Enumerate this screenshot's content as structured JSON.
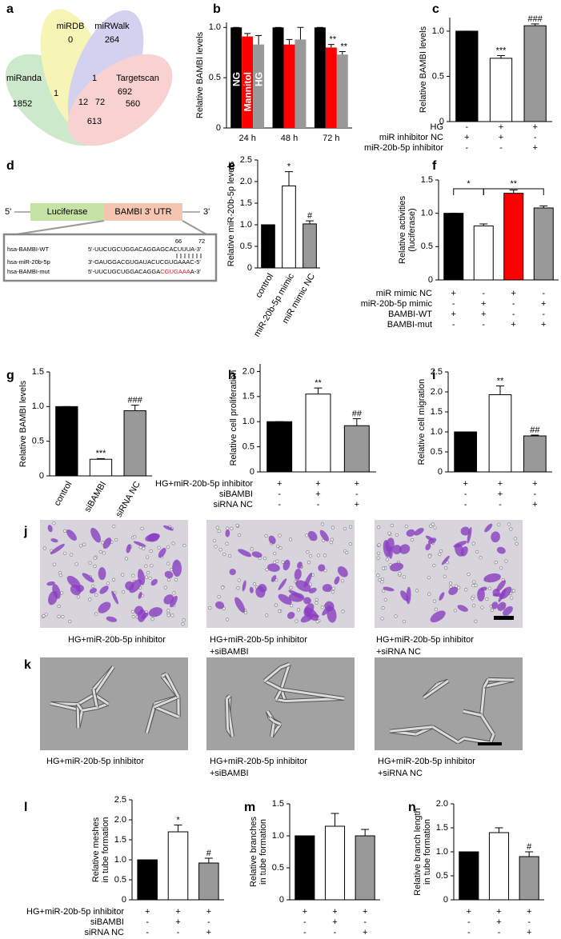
{
  "venn": {
    "panel_label": "a",
    "sets": [
      "miRDB",
      "miRWalk",
      "miRanda",
      "Targetscan"
    ],
    "counts": [
      0,
      264,
      1852,
      560,
      1,
      1,
      12,
      72,
      692,
      613
    ]
  },
  "construct": {
    "panel_label": "d",
    "five": "5'",
    "luciferase": "Luciferase",
    "utr": "BAMBI 3' UTR",
    "three": "3'",
    "positions": [
      66,
      72
    ],
    "rows": [
      {
        "name": "hsa-BAMBI-WT",
        "seq": "5'-UUCUGCUGGACAGGAGCACUUUA-3'"
      },
      {
        "name": "hsa-miR-20b-5p",
        "seq": "3'-GAUGGACGUGAUACUCGUGAAAC-5'"
      },
      {
        "name": "hsa-BAMBI-mut",
        "seq": [
          "5'-UUCUGCUGGACAGGA",
          "CGUGAAA",
          "A-3'"
        ]
      }
    ]
  },
  "chart_data": [
    {
      "panel_label": "b",
      "type": "grouped_bar",
      "ylabel": "Relative BAMBI levels",
      "categories": [
        "24 h",
        "48 h",
        "72 h"
      ],
      "ylim": [
        0,
        1.05
      ],
      "yticks": [
        0,
        0.5,
        {
          "value": 1,
          "label": "1.0"
        }
      ],
      "series": [
        {
          "name": "NG",
          "color": "#000000",
          "values": [
            1,
            1,
            1
          ],
          "errors": [
            0,
            0,
            0
          ]
        },
        {
          "name": "Mannitol",
          "color": "#ff0000",
          "values": [
            0.91,
            0.83,
            0.8
          ],
          "errors": [
            0.03,
            0.05,
            0.03
          ],
          "annotations": [
            null,
            null,
            "**"
          ]
        },
        {
          "name": "HG",
          "color": "#999999",
          "values": [
            0.83,
            0.88,
            0.73
          ],
          "errors": [
            0.09,
            0.12,
            0.03
          ],
          "annotations": [
            null,
            null,
            "**"
          ]
        }
      ]
    },
    {
      "panel_label": "c",
      "type": "bar",
      "ylabel": "Relative BAMBI levels",
      "values": [
        1,
        0.7,
        1.06
      ],
      "errors": [
        0,
        0.03,
        0.02
      ],
      "colors": [
        "#000000",
        "#ffffff",
        "#999999"
      ],
      "annotations": [
        null,
        "***",
        "###"
      ],
      "ylim": [
        0,
        1.15
      ],
      "yticks": [
        0,
        0.5,
        {
          "value": 1,
          "label": "1.0"
        }
      ],
      "conditions": [
        {
          "label": "HG",
          "signs": [
            "-",
            "+",
            "+"
          ]
        },
        {
          "label": "miR inhibitor NC",
          "signs": [
            "+",
            "+",
            "-"
          ]
        },
        {
          "label": "miR-20b-5p inhibitor",
          "signs": [
            "-",
            "-",
            "+"
          ]
        }
      ]
    },
    {
      "panel_label": "e",
      "type": "bar",
      "ylabel": "Relative miR-20b-5p levels",
      "categories": [
        "control",
        "miR-20b-5p mimic",
        "miR mimic NC"
      ],
      "values": [
        1,
        1.9,
        1.02
      ],
      "errors": [
        0,
        0.33,
        0.07
      ],
      "colors": [
        "#000000",
        "#ffffff",
        "#999999"
      ],
      "annotations": [
        null,
        "*",
        "#"
      ],
      "ylim": [
        0,
        2.5
      ],
      "yticks": [
        0,
        0.5,
        {
          "value": 1,
          "label": "1.0"
        },
        1.5,
        {
          "value": 2,
          "label": "2.0"
        },
        2.5
      ]
    },
    {
      "panel_label": "f",
      "type": "bar",
      "ylabel": [
        "Relative activities",
        "(luciferase)"
      ],
      "values": [
        1,
        0.81,
        1.3,
        1.08
      ],
      "errors": [
        0,
        0.03,
        0.05,
        0.03
      ],
      "colors": [
        "#000000",
        "#ffffff",
        "#ff0000",
        "#999999"
      ],
      "comparisons": [
        "*",
        "**"
      ],
      "ylim": [
        0,
        1.5
      ],
      "yticks": [
        0,
        0.5,
        {
          "value": 1,
          "label": "1.0"
        },
        1.5
      ],
      "conditions": [
        {
          "label": "miR mimic NC",
          "signs": [
            "+",
            "-",
            "+",
            "-"
          ]
        },
        {
          "label": "miR-20b-5p mimic",
          "signs": [
            "-",
            "+",
            "-",
            "+"
          ]
        },
        {
          "label": "BAMBI-WT",
          "signs": [
            "+",
            "+",
            "-",
            "-"
          ]
        },
        {
          "label": "BAMBI-mut",
          "signs": [
            "-",
            "-",
            "+",
            "+"
          ]
        }
      ]
    },
    {
      "panel_label": "g",
      "type": "bar",
      "ylabel": "Relative BAMBI levels",
      "categories": [
        "control",
        "siBAMBI",
        "siRNA NC"
      ],
      "values": [
        1,
        0.24,
        0.94
      ],
      "errors": [
        0,
        0.01,
        0.08
      ],
      "colors": [
        "#000000",
        "#ffffff",
        "#999999"
      ],
      "annotations": [
        null,
        "***",
        "###"
      ],
      "ylim": [
        0,
        1.5
      ],
      "yticks": [
        0,
        0.5,
        {
          "value": 1,
          "label": "1.0"
        },
        1.5
      ]
    },
    {
      "panel_label": "h",
      "type": "bar",
      "ylabel": "Relative cell proliferation",
      "values": [
        1,
        1.55,
        0.92
      ],
      "errors": [
        0,
        0.12,
        0.14
      ],
      "colors": [
        "#000000",
        "#ffffff",
        "#999999"
      ],
      "annotations": [
        null,
        "**",
        "##"
      ],
      "ylim": [
        0,
        2.15
      ],
      "yticks": [
        0,
        0.5,
        {
          "value": 1,
          "label": "1.0"
        },
        1.5,
        {
          "value": 2,
          "label": "2.0"
        }
      ],
      "conditions": [
        {
          "label": "HG+miR-20b-5p inhibitor",
          "signs": [
            "+",
            "+",
            "+"
          ]
        },
        {
          "label": "siBAMBI",
          "signs": [
            "-",
            "+",
            "-"
          ]
        },
        {
          "label": "siRNA NC",
          "signs": [
            "-",
            "-",
            "+"
          ]
        }
      ]
    },
    {
      "panel_label": "i",
      "type": "bar",
      "ylabel": "Relative cell migration",
      "values": [
        1,
        1.93,
        0.9
      ],
      "errors": [
        0,
        0.22,
        0.02
      ],
      "colors": [
        "#000000",
        "#ffffff",
        "#999999"
      ],
      "annotations": [
        null,
        "**",
        "##"
      ],
      "ylim": [
        0,
        2.5
      ],
      "yticks": [
        0,
        0.5,
        {
          "value": 1,
          "label": "1.0"
        },
        1.5,
        {
          "value": 2,
          "label": "2.0"
        },
        2.5
      ],
      "conditions": [
        {
          "label": null,
          "signs": [
            "+",
            "+",
            "+"
          ]
        },
        {
          "label": null,
          "signs": [
            "-",
            "+",
            "-"
          ]
        },
        {
          "label": null,
          "signs": [
            "-",
            "-",
            "+"
          ]
        }
      ]
    },
    {
      "panel_label": "l",
      "type": "bar",
      "ylabel": [
        "Relative meshes",
        "in tube formation"
      ],
      "values": [
        1,
        1.7,
        0.92
      ],
      "errors": [
        0,
        0.17,
        0.12
      ],
      "colors": [
        "#000000",
        "#ffffff",
        "#999999"
      ],
      "annotations": [
        null,
        "*",
        "#"
      ],
      "ylim": [
        0,
        2.5
      ],
      "yticks": [
        0,
        0.5,
        {
          "value": 1,
          "label": "1.0"
        },
        1.5,
        {
          "value": 2,
          "label": "2.0"
        },
        2.5
      ],
      "conditions": [
        {
          "label": "HG+miR-20b-5p inhibitor",
          "signs": [
            "+",
            "+",
            "+"
          ]
        },
        {
          "label": "siBAMBI",
          "signs": [
            "-",
            "+",
            "-"
          ]
        },
        {
          "label": "siRNA NC",
          "signs": [
            "-",
            "-",
            "+"
          ]
        }
      ]
    },
    {
      "panel_label": "m",
      "type": "bar",
      "ylabel": [
        "Relative branches",
        "in tube formation"
      ],
      "values": [
        1,
        1.15,
        1
      ],
      "errors": [
        0,
        0.2,
        0.1
      ],
      "colors": [
        "#000000",
        "#ffffff",
        "#999999"
      ],
      "ylim": [
        0,
        1.5
      ],
      "yticks": [
        0,
        0.5,
        {
          "value": 1,
          "label": "1.0"
        },
        1.5
      ],
      "conditions": [
        {
          "label": null,
          "signs": [
            "+",
            "+",
            "+"
          ]
        },
        {
          "label": null,
          "signs": [
            "-",
            "+",
            "-"
          ]
        },
        {
          "label": null,
          "signs": [
            "-",
            "-",
            "+"
          ]
        }
      ]
    },
    {
      "panel_label": "n",
      "type": "bar",
      "ylabel": [
        "Relative branch length",
        "in tube formation"
      ],
      "values": [
        1,
        1.4,
        0.9
      ],
      "errors": [
        0,
        0.1,
        0.1
      ],
      "colors": [
        "#000000",
        "#ffffff",
        "#999999"
      ],
      "annotations": [
        null,
        null,
        "#"
      ],
      "ylim": [
        0,
        2
      ],
      "yticks": [
        0,
        0.5,
        {
          "value": 1,
          "label": "1.0"
        },
        1.5,
        {
          "value": 2,
          "label": "2.0"
        }
      ],
      "conditions": [
        {
          "label": null,
          "signs": [
            "+",
            "+",
            "+"
          ]
        },
        {
          "label": null,
          "signs": [
            "-",
            "+",
            "-"
          ]
        },
        {
          "label": null,
          "signs": [
            "-",
            "-",
            "+"
          ]
        }
      ]
    }
  ],
  "micrographs": [
    {
      "panel_label": "j",
      "captions": [
        [
          "HG+miR-20b-5p inhibitor"
        ],
        [
          "HG+miR-20b-5p inhibitor",
          "+siBAMBI"
        ],
        [
          "HG+miR-20b-5p inhibitor",
          "+siRNA NC"
        ]
      ]
    },
    {
      "panel_label": "k",
      "captions": [
        [
          "HG+miR-20b-5p inhibitor"
        ],
        [
          "HG+miR-20b-5p inhibitor",
          "+siBAMBI"
        ],
        [
          "HG+miR-20b-5p inhibitor",
          "+siRNA NC"
        ]
      ]
    }
  ]
}
